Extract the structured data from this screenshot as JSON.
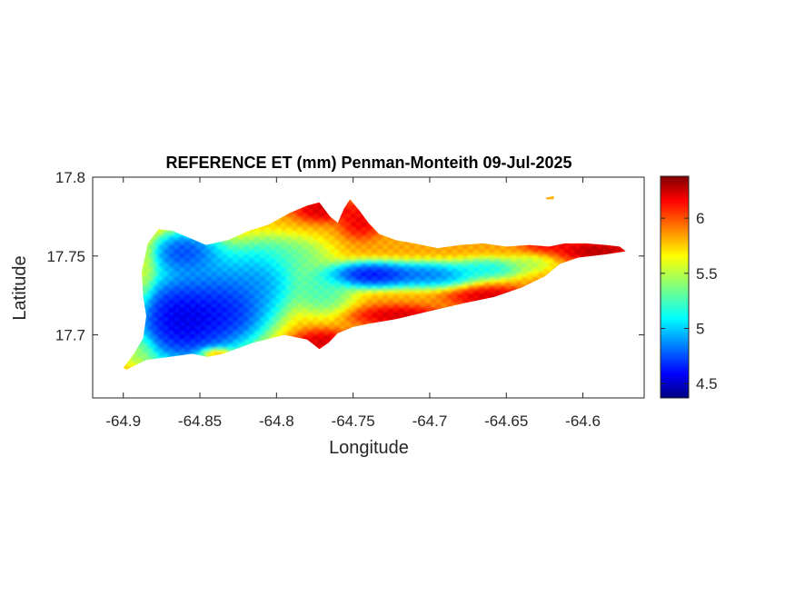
{
  "chart_data": {
    "type": "heatmap",
    "title": "REFERENCE ET (mm) Penman-Monteith 09-Jul-2025",
    "xlabel": "Longitude",
    "ylabel": "Latitude",
    "xlim": [
      -64.92,
      -64.56
    ],
    "ylim": [
      17.66,
      17.8
    ],
    "x_ticks": [
      -64.9,
      -64.85,
      -64.8,
      -64.75,
      -64.7,
      -64.65,
      -64.6
    ],
    "x_tick_labels": [
      "-64.9",
      "-64.85",
      "-64.8",
      "-64.75",
      "-64.7",
      "-64.65",
      "-64.6"
    ],
    "y_ticks": [
      17.7,
      17.75,
      17.8
    ],
    "y_tick_labels": [
      "17.7",
      "17.75",
      "17.8"
    ],
    "colorbar": {
      "label": "",
      "colormap": "jet",
      "range": [
        4.37,
        6.38
      ],
      "ticks": [
        4.5,
        5,
        5.5,
        6
      ],
      "tick_labels": [
        "4.5",
        "5",
        "5.5",
        "6"
      ]
    },
    "region_outline": [
      [
        -64.9,
        17.679
      ],
      [
        -64.893,
        17.688
      ],
      [
        -64.887,
        17.698
      ],
      [
        -64.885,
        17.712
      ],
      [
        -64.887,
        17.724
      ],
      [
        -64.888,
        17.74
      ],
      [
        -64.884,
        17.758
      ],
      [
        -64.877,
        17.767
      ],
      [
        -64.868,
        17.766
      ],
      [
        -64.858,
        17.762
      ],
      [
        -64.846,
        17.757
      ],
      [
        -64.832,
        17.76
      ],
      [
        -64.818,
        17.766
      ],
      [
        -64.805,
        17.77
      ],
      [
        -64.792,
        17.777
      ],
      [
        -64.78,
        17.782
      ],
      [
        -64.772,
        17.784
      ],
      [
        -64.765,
        17.775
      ],
      [
        -64.76,
        17.771
      ],
      [
        -64.756,
        17.78
      ],
      [
        -64.752,
        17.786
      ],
      [
        -64.746,
        17.779
      ],
      [
        -64.74,
        17.771
      ],
      [
        -64.733,
        17.764
      ],
      [
        -64.722,
        17.76
      ],
      [
        -64.71,
        17.758
      ],
      [
        -64.695,
        17.755
      ],
      [
        -64.68,
        17.757
      ],
      [
        -64.665,
        17.758
      ],
      [
        -64.65,
        17.756
      ],
      [
        -64.635,
        17.757
      ],
      [
        -64.622,
        17.756
      ],
      [
        -64.612,
        17.758
      ],
      [
        -64.598,
        17.758
      ],
      [
        -64.585,
        17.757
      ],
      [
        -64.576,
        17.756
      ],
      [
        -64.572,
        17.753
      ],
      [
        -64.585,
        17.751
      ],
      [
        -64.603,
        17.749
      ],
      [
        -64.615,
        17.745
      ],
      [
        -64.625,
        17.737
      ],
      [
        -64.64,
        17.73
      ],
      [
        -64.658,
        17.724
      ],
      [
        -64.678,
        17.72
      ],
      [
        -64.7,
        17.715
      ],
      [
        -64.722,
        17.71
      ],
      [
        -64.74,
        17.707
      ],
      [
        -64.75,
        17.705
      ],
      [
        -64.76,
        17.701
      ],
      [
        -64.766,
        17.695
      ],
      [
        -64.772,
        17.691
      ],
      [
        -64.78,
        17.697
      ],
      [
        -64.795,
        17.7
      ],
      [
        -64.815,
        17.695
      ],
      [
        -64.835,
        17.688
      ],
      [
        -64.845,
        17.686
      ],
      [
        -64.855,
        17.688
      ],
      [
        -64.87,
        17.686
      ],
      [
        -64.885,
        17.684
      ],
      [
        -64.898,
        17.678
      ]
    ],
    "islet_outline": [
      [
        -64.624,
        17.787
      ],
      [
        -64.619,
        17.788
      ],
      [
        -64.619,
        17.786
      ],
      [
        -64.624,
        17.786
      ]
    ],
    "value_field": {
      "description": "",
      "background_value": 5.8,
      "features": [
        {
          "lon": -64.862,
          "lat": 17.71,
          "value": 4.4,
          "sx": 0.022,
          "sy": 0.02,
          "w": 2.1
        },
        {
          "lon": -64.835,
          "lat": 17.716,
          "value": 4.5,
          "sx": 0.022,
          "sy": 0.018,
          "w": 1.9
        },
        {
          "lon": -64.86,
          "lat": 17.752,
          "value": 4.55,
          "sx": 0.016,
          "sy": 0.01,
          "w": 1.6
        },
        {
          "lon": -64.81,
          "lat": 17.735,
          "value": 4.75,
          "sx": 0.018,
          "sy": 0.018,
          "w": 1.2
        },
        {
          "lon": -64.845,
          "lat": 17.738,
          "value": 4.85,
          "sx": 0.022,
          "sy": 0.016,
          "w": 1.3
        },
        {
          "lon": -64.79,
          "lat": 17.75,
          "value": 5.2,
          "sx": 0.02,
          "sy": 0.01,
          "w": 0.9
        },
        {
          "lon": -64.77,
          "lat": 17.728,
          "value": 5.1,
          "sx": 0.016,
          "sy": 0.012,
          "w": 1.0
        },
        {
          "lon": -64.738,
          "lat": 17.738,
          "value": 4.45,
          "sx": 0.022,
          "sy": 0.006,
          "w": 1.8
        },
        {
          "lon": -64.7,
          "lat": 17.738,
          "value": 4.7,
          "sx": 0.022,
          "sy": 0.006,
          "w": 1.5
        },
        {
          "lon": -64.662,
          "lat": 17.742,
          "value": 5.0,
          "sx": 0.018,
          "sy": 0.005,
          "w": 1.2
        },
        {
          "lon": -64.635,
          "lat": 17.745,
          "value": 5.4,
          "sx": 0.012,
          "sy": 0.004,
          "w": 1.0
        },
        {
          "lon": -64.886,
          "lat": 17.745,
          "value": 5.5,
          "sx": 0.005,
          "sy": 0.018,
          "w": 1.1
        },
        {
          "lon": -64.89,
          "lat": 17.69,
          "value": 5.4,
          "sx": 0.008,
          "sy": 0.008,
          "w": 1.0
        },
        {
          "lon": -64.77,
          "lat": 17.78,
          "value": 6.3,
          "sx": 0.014,
          "sy": 0.006,
          "w": 1.4
        },
        {
          "lon": -64.745,
          "lat": 17.772,
          "value": 6.25,
          "sx": 0.01,
          "sy": 0.008,
          "w": 1.2
        },
        {
          "lon": -64.77,
          "lat": 17.695,
          "value": 6.3,
          "sx": 0.014,
          "sy": 0.006,
          "w": 1.4
        },
        {
          "lon": -64.72,
          "lat": 17.712,
          "value": 6.3,
          "sx": 0.022,
          "sy": 0.005,
          "w": 1.3
        },
        {
          "lon": -64.66,
          "lat": 17.724,
          "value": 6.3,
          "sx": 0.02,
          "sy": 0.005,
          "w": 1.3
        },
        {
          "lon": -64.59,
          "lat": 17.753,
          "value": 6.35,
          "sx": 0.018,
          "sy": 0.005,
          "w": 1.8
        },
        {
          "lon": -64.62,
          "lat": 17.757,
          "value": 6.2,
          "sx": 0.014,
          "sy": 0.004,
          "w": 1.2
        },
        {
          "lon": -64.84,
          "lat": 17.688,
          "value": 6.2,
          "sx": 0.008,
          "sy": 0.003,
          "w": 1.0
        }
      ]
    }
  }
}
